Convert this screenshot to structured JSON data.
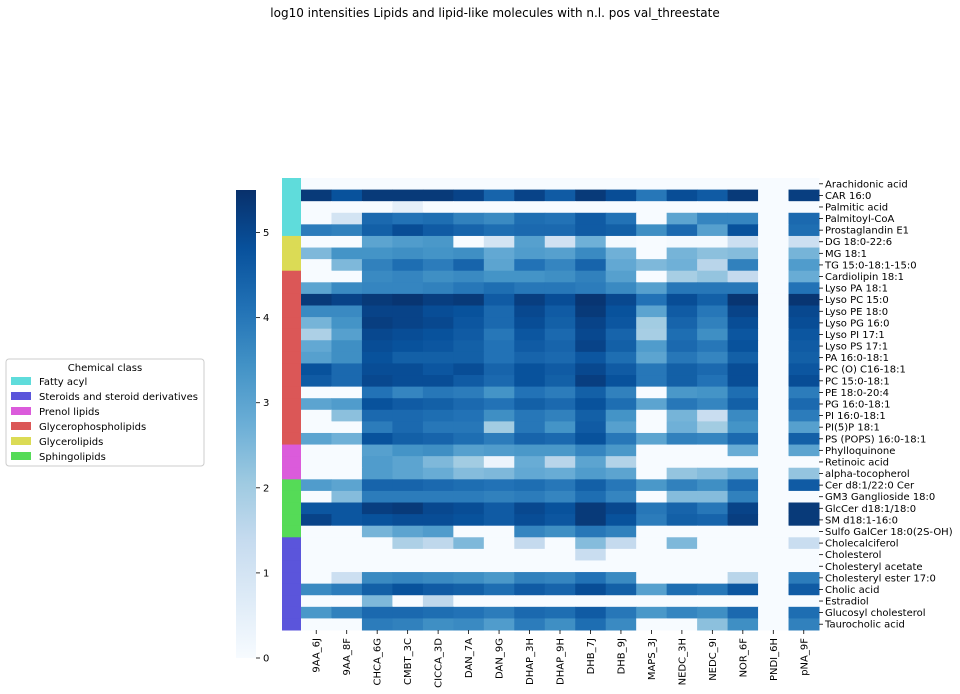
{
  "chart_data": {
    "type": "heatmap",
    "title": "log10 intensities Lipids and lipid-like molecules with n.l. pos val_threestate",
    "x_labels": [
      "9AA_6J",
      "9AA_8F",
      "CHCA_6G",
      "CMBT_3C",
      "CICCA_3D",
      "DAN_7A",
      "DAN_9G",
      "DHAP_3H",
      "DHAP_9H",
      "DHB_7J",
      "DHB_9J",
      "MAPS_3J",
      "NEDC_3H",
      "NEDC_9I",
      "NOR_6F",
      "PNDI_6H",
      "pNA_9F"
    ],
    "y_labels": [
      "Arachidonic acid",
      "CAR 16:0",
      "Palmitic acid",
      "Palmitoyl-CoA",
      "Prostaglandin E1",
      "DG 18:0-22:6",
      "MG 18:1",
      "TG 15:0-18:1-15:0",
      "Cardiolipin 18:1",
      "Lyso PA 18:1",
      "Lyso PC 15:0",
      "Lyso PE 18:0",
      "Lyso PG 16:0",
      "Lyso PI 17:1",
      "Lyso PS 17:1",
      "PA 16:0-18:1",
      "PC (O) C16-18:1",
      "PC 15:0-18:1",
      "PE 18:0-20:4",
      "PG 16:0-18:1",
      "PI 16:0-18:1",
      "PI(5)P 18:1",
      "PS (POPS) 16:0-18:1",
      "Phylloquinone",
      "Retinoic acid",
      "alpha-tocopherol",
      "Cer d8:1/22:0 Cer",
      "GM3 Ganglioside 18:0",
      "GlcCer d18:1/18:0",
      "SM d18:1-16:0",
      "Sulfo GalCer 18:0(2S-OH)",
      "Cholecalciferol",
      "Cholesterol",
      "Cholesteryl acetate",
      "Cholesteryl ester 17:0",
      "Cholic acid",
      "Estradiol",
      "Glucosyl cholesterol",
      "Taurocholic acid"
    ],
    "row_classes": [
      0,
      0,
      0,
      0,
      0,
      1,
      1,
      1,
      2,
      2,
      2,
      2,
      2,
      2,
      2,
      2,
      2,
      2,
      2,
      2,
      2,
      2,
      2,
      3,
      3,
      3,
      4,
      4,
      4,
      4,
      4,
      5,
      5,
      5,
      5,
      5,
      5,
      5,
      5
    ],
    "vmin": 0,
    "vmax": 5.5,
    "colorbar_ticks": [
      0,
      1,
      2,
      3,
      4,
      5
    ],
    "colormap": [
      "#f7fbff",
      "#deebf7",
      "#c6dbef",
      "#9ecae1",
      "#6baed6",
      "#4292c6",
      "#2171b5",
      "#08519c",
      "#08306b"
    ],
    "values": [
      [
        0,
        0,
        0,
        0,
        0,
        0,
        0,
        0,
        0,
        0,
        0,
        0,
        0,
        0,
        0,
        0,
        0
      ],
      [
        5.3,
        4.8,
        5.3,
        5.3,
        5.3,
        5.1,
        4.4,
        5.1,
        4.6,
        5.3,
        4.9,
        4.0,
        4.9,
        4.6,
        5.3,
        0,
        5.2
      ],
      [
        0,
        0,
        0,
        0.5,
        0,
        0,
        0,
        0,
        0,
        0,
        0,
        0,
        0,
        0,
        0,
        0,
        0
      ],
      [
        0,
        1.0,
        4.3,
        4.1,
        4.2,
        3.8,
        3.6,
        4.2,
        4.1,
        4.6,
        4.1,
        0,
        3.0,
        3.7,
        3.7,
        0,
        4.3
      ],
      [
        3.9,
        3.8,
        4.5,
        4.9,
        4.6,
        4.4,
        4.2,
        4.3,
        4.3,
        4.6,
        4.5,
        3.5,
        4.3,
        3.1,
        4.8,
        0,
        4.2
      ],
      [
        0,
        0,
        3.0,
        3.2,
        3.3,
        0,
        1.0,
        3.1,
        1.1,
        2.7,
        0.1,
        0,
        0.1,
        0.1,
        1.2,
        0,
        1.2
      ],
      [
        2.5,
        3.4,
        3.4,
        3.5,
        3.4,
        3.5,
        2.9,
        3.2,
        3.1,
        3.6,
        2.7,
        0,
        2.6,
        2.3,
        2.4,
        0,
        2.6
      ],
      [
        0,
        2.5,
        3.8,
        4.2,
        3.9,
        4.4,
        3.0,
        4.1,
        3.7,
        4.4,
        2.9,
        2.5,
        2.7,
        1.6,
        3.8,
        0,
        3.2
      ],
      [
        0,
        0,
        3.6,
        3.7,
        3.5,
        3.6,
        3.4,
        3.4,
        3.5,
        3.8,
        3.1,
        0,
        1.9,
        2.2,
        1.4,
        0,
        2.8
      ],
      [
        3.0,
        3.6,
        3.7,
        3.7,
        3.8,
        4.0,
        4.2,
        4.0,
        4.0,
        3.9,
        3.6,
        3.1,
        4.0,
        4.0,
        4.0,
        0,
        4.1
      ],
      [
        5.3,
        5.1,
        5.3,
        5.4,
        5.2,
        5.3,
        4.6,
        5.2,
        4.9,
        5.4,
        5.0,
        4.1,
        4.9,
        4.5,
        5.4,
        0,
        5.4
      ],
      [
        3.6,
        3.6,
        5.1,
        5.1,
        4.9,
        4.8,
        4.3,
        5.0,
        4.6,
        5.3,
        4.8,
        3.0,
        4.6,
        4.0,
        5.1,
        0,
        5.0
      ],
      [
        2.6,
        3.4,
        5.2,
        5.1,
        5.0,
        4.7,
        4.3,
        4.9,
        4.5,
        5.1,
        4.7,
        2.0,
        4.4,
        3.8,
        4.9,
        0,
        4.9
      ],
      [
        1.8,
        3.1,
        5.0,
        4.9,
        4.8,
        4.6,
        4.0,
        4.7,
        4.3,
        5.0,
        4.4,
        1.9,
        4.2,
        3.5,
        4.7,
        0,
        4.7
      ],
      [
        2.9,
        3.5,
        4.9,
        4.8,
        4.7,
        4.5,
        4.1,
        4.6,
        4.4,
        5.1,
        4.5,
        3.2,
        4.3,
        4.0,
        4.8,
        0,
        4.6
      ],
      [
        3.1,
        3.5,
        4.8,
        4.5,
        4.5,
        4.5,
        4.1,
        4.4,
        4.3,
        4.7,
        4.2,
        3.0,
        4.0,
        3.7,
        4.5,
        0,
        4.5
      ],
      [
        4.8,
        4.3,
        4.9,
        4.9,
        4.7,
        4.9,
        4.4,
        4.8,
        4.6,
        5.0,
        4.6,
        4.0,
        4.5,
        4.3,
        4.9,
        0,
        4.7
      ],
      [
        4.6,
        4.3,
        5.0,
        4.9,
        4.9,
        4.6,
        4.3,
        4.8,
        4.5,
        5.2,
        4.8,
        4.0,
        4.5,
        4.1,
        4.9,
        0,
        4.9
      ],
      [
        0,
        0,
        4.1,
        3.7,
        4.0,
        3.9,
        3.4,
        4.1,
        3.9,
        4.5,
        3.8,
        0,
        3.3,
        3.4,
        4.2,
        0,
        3.9
      ],
      [
        3.0,
        3.2,
        4.8,
        4.6,
        4.5,
        4.3,
        4.1,
        4.5,
        4.3,
        4.8,
        4.2,
        3.0,
        4.0,
        3.7,
        4.5,
        0,
        4.3
      ],
      [
        0,
        2.3,
        4.3,
        4.3,
        4.2,
        4.1,
        3.5,
        4.0,
        3.8,
        4.5,
        3.4,
        0,
        2.6,
        1.3,
        3.6,
        0,
        3.9
      ],
      [
        0,
        0,
        3.9,
        4.3,
        4.0,
        4.0,
        2.0,
        4.0,
        3.4,
        4.6,
        3.1,
        0,
        2.7,
        2.0,
        3.4,
        0,
        3.1
      ],
      [
        3.0,
        2.7,
        4.8,
        4.5,
        4.4,
        4.2,
        3.9,
        4.4,
        4.3,
        4.8,
        4.0,
        3.0,
        3.8,
        3.7,
        4.3,
        0,
        4.5
      ],
      [
        0,
        0,
        3.1,
        3.4,
        3.5,
        3.1,
        3.2,
        3.3,
        3.3,
        3.7,
        3.3,
        0,
        0,
        0,
        2.8,
        0,
        3.0
      ],
      [
        0,
        0,
        3.2,
        3.0,
        2.5,
        2.0,
        0.3,
        2.8,
        1.6,
        3.0,
        1.7,
        0,
        0,
        0,
        0,
        0,
        0
      ],
      [
        0,
        0,
        3.2,
        3.0,
        2.8,
        2.4,
        2.5,
        2.9,
        2.8,
        3.2,
        3.0,
        0,
        2.2,
        2.4,
        2.8,
        0,
        2.2
      ],
      [
        3.2,
        3.0,
        4.4,
        4.4,
        4.3,
        4.2,
        4.1,
        4.2,
        4.0,
        4.5,
        4.0,
        3.3,
        3.8,
        3.5,
        4.3,
        0,
        4.6
      ],
      [
        0,
        2.4,
        3.9,
        3.9,
        3.9,
        3.9,
        3.8,
        3.9,
        3.7,
        4.2,
        3.7,
        0,
        2.4,
        2.4,
        3.8,
        0,
        0
      ],
      [
        4.7,
        4.7,
        5.2,
        5.3,
        5.0,
        4.9,
        4.6,
        5.0,
        4.8,
        5.3,
        5.0,
        4.0,
        4.4,
        4.0,
        5.1,
        0,
        5.3
      ],
      [
        5.1,
        4.7,
        4.8,
        4.9,
        4.9,
        4.8,
        4.6,
        4.9,
        4.7,
        5.3,
        4.8,
        3.9,
        4.5,
        4.4,
        5.2,
        0,
        5.3
      ],
      [
        0,
        0,
        2.6,
        3.0,
        3.2,
        0,
        0,
        3.7,
        3.5,
        4.0,
        3.8,
        0,
        0,
        0,
        0,
        0,
        0
      ],
      [
        0,
        0,
        0,
        1.8,
        1.5,
        2.5,
        0,
        1.4,
        0,
        2.4,
        1.4,
        0,
        2.5,
        0,
        0,
        0,
        1.3
      ],
      [
        0,
        0,
        0,
        0,
        0,
        0,
        0,
        0,
        0,
        1.3,
        0,
        0,
        0,
        0,
        0,
        0,
        0
      ],
      [
        0,
        0,
        0,
        0,
        0,
        0,
        0,
        0,
        0,
        0,
        0,
        0,
        0,
        0,
        0,
        0,
        0
      ],
      [
        0,
        1.2,
        3.6,
        3.7,
        3.6,
        3.5,
        3.3,
        3.8,
        3.7,
        4.1,
        3.6,
        0,
        0,
        0,
        1.6,
        0,
        3.9
      ],
      [
        3.6,
        3.9,
        4.5,
        4.8,
        4.6,
        4.5,
        4.2,
        4.6,
        4.4,
        4.9,
        4.5,
        3.1,
        4.2,
        4.0,
        4.7,
        0,
        4.6
      ],
      [
        0,
        0,
        2.5,
        0,
        1.5,
        0,
        0,
        0,
        0,
        0,
        0,
        0,
        0,
        0,
        0,
        0,
        0
      ],
      [
        3.3,
        3.8,
        4.3,
        4.3,
        4.2,
        4.1,
        3.9,
        4.3,
        4.2,
        4.6,
        4.0,
        3.3,
        3.7,
        3.5,
        4.3,
        0,
        4.2
      ],
      [
        0,
        0,
        3.9,
        3.8,
        3.5,
        3.6,
        3.2,
        3.9,
        3.5,
        4.2,
        3.6,
        0,
        0,
        2.3,
        3.5,
        0,
        3.8
      ]
    ],
    "legend": {
      "title": "Chemical class",
      "placement": "left",
      "entries": [
        {
          "label": "Fatty acyl",
          "color": "#5fdcdb"
        },
        {
          "label": "Steroids and steroid derivatives",
          "color": "#5b55db"
        },
        {
          "label": "Prenol lipids",
          "color": "#db5bdb"
        },
        {
          "label": "Glycerophospholipids",
          "color": "#db5757"
        },
        {
          "label": "Glycerolipids",
          "color": "#dbdb55"
        },
        {
          "label": "Sphingolipids",
          "color": "#55db57"
        }
      ]
    },
    "class_colors": [
      "#5fdcdb",
      "#dbdb55",
      "#db5757",
      "#db5bdb",
      "#55db57",
      "#5b55db"
    ]
  }
}
